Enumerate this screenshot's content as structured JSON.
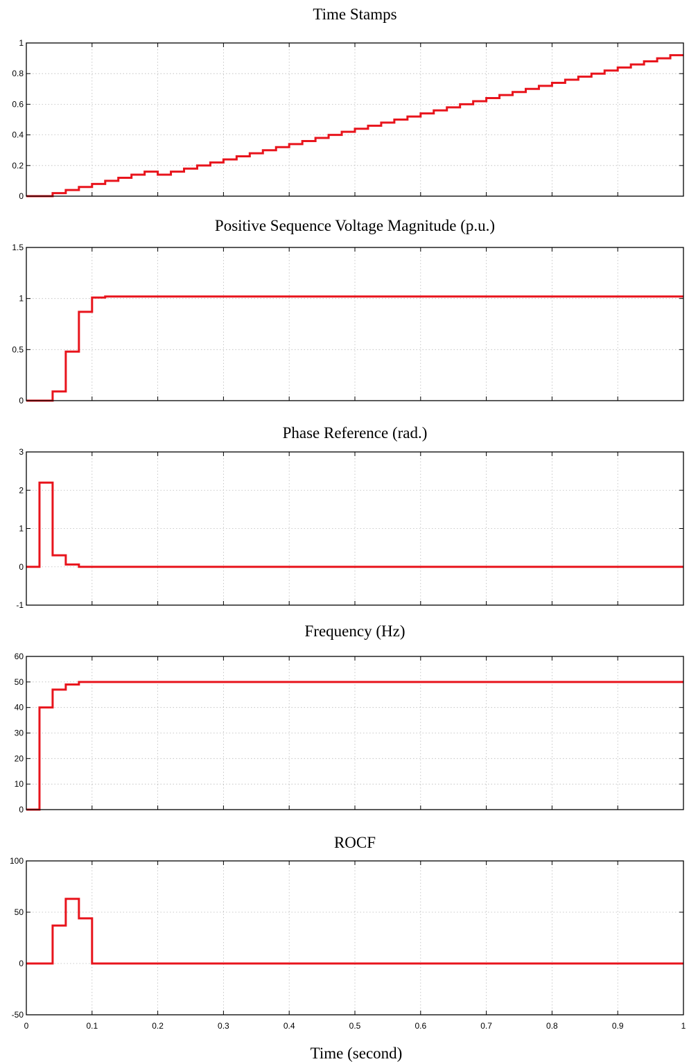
{
  "figure": {
    "xlabel": "Time (second)",
    "trace_color": "#e8141c"
  },
  "chart_data": [
    {
      "type": "line",
      "step": true,
      "title": "Time Stamps",
      "xlim": [
        0,
        1
      ],
      "ylim": [
        0,
        1
      ],
      "yticks": [
        0,
        0.2,
        0.4,
        0.6,
        0.8,
        1
      ],
      "ytick_labels": [
        "0",
        "0.2",
        "0.4",
        "0.6",
        "0.8",
        "1"
      ],
      "xtick_labels_shown": false,
      "grid": true,
      "x": [
        0,
        0.04,
        0.06,
        0.08,
        0.1,
        0.12,
        0.14,
        0.16,
        0.18,
        0.2,
        0.22,
        0.24,
        0.26,
        0.28,
        0.3,
        0.32,
        0.34,
        0.36,
        0.38,
        0.4,
        0.42,
        0.44,
        0.46,
        0.48,
        0.5,
        0.52,
        0.54,
        0.56,
        0.58,
        0.6,
        0.62,
        0.64,
        0.66,
        0.68,
        0.7,
        0.72,
        0.74,
        0.76,
        0.78,
        0.8,
        0.82,
        0.84,
        0.86,
        0.88,
        0.9,
        0.92,
        0.94,
        0.96,
        0.98,
        1.0
      ],
      "y": [
        0,
        0.02,
        0.04,
        0.06,
        0.08,
        0.1,
        0.12,
        0.14,
        0.16,
        0.14,
        0.16,
        0.18,
        0.2,
        0.22,
        0.24,
        0.26,
        0.28,
        0.3,
        0.32,
        0.34,
        0.36,
        0.38,
        0.4,
        0.42,
        0.44,
        0.46,
        0.48,
        0.5,
        0.52,
        0.54,
        0.56,
        0.58,
        0.6,
        0.62,
        0.64,
        0.66,
        0.68,
        0.7,
        0.72,
        0.74,
        0.76,
        0.78,
        0.8,
        0.82,
        0.84,
        0.86,
        0.88,
        0.9,
        0.92,
        0.92
      ]
    },
    {
      "type": "line",
      "step": true,
      "title": "Positive Sequence Voltage Magnitude (p.u.)",
      "xlim": [
        0,
        1
      ],
      "ylim": [
        0,
        1.5
      ],
      "yticks": [
        0,
        0.5,
        1,
        1.5
      ],
      "ytick_labels": [
        "0",
        "0.5",
        "1",
        "1.5"
      ],
      "xtick_labels_shown": false,
      "grid": true,
      "x": [
        0,
        0.04,
        0.06,
        0.08,
        0.1,
        0.12,
        1.0
      ],
      "y": [
        0,
        0.09,
        0.48,
        0.87,
        1.01,
        1.02,
        1.02
      ]
    },
    {
      "type": "line",
      "step": true,
      "title": "Phase Reference (rad.)",
      "xlim": [
        0,
        1
      ],
      "ylim": [
        -1,
        3
      ],
      "yticks": [
        -1,
        0,
        1,
        2,
        3
      ],
      "ytick_labels": [
        "-1",
        "0",
        "1",
        "2",
        "3"
      ],
      "xtick_labels_shown": false,
      "grid": true,
      "x": [
        0,
        0.02,
        0.04,
        0.06,
        0.08,
        1.0
      ],
      "y": [
        0,
        2.2,
        0.3,
        0.06,
        0,
        0
      ]
    },
    {
      "type": "line",
      "step": true,
      "title": "Frequency (Hz)",
      "xlim": [
        0,
        1
      ],
      "ylim": [
        0,
        60
      ],
      "yticks": [
        0,
        10,
        20,
        30,
        40,
        50,
        60
      ],
      "ytick_labels": [
        "0",
        "10",
        "20",
        "30",
        "40",
        "50",
        "60"
      ],
      "xtick_labels_shown": false,
      "grid": true,
      "x": [
        0,
        0.02,
        0.04,
        0.06,
        0.08,
        1.0
      ],
      "y": [
        0,
        40,
        47,
        49,
        50,
        50
      ]
    },
    {
      "type": "line",
      "step": true,
      "title": "ROCF",
      "xlim": [
        0,
        1
      ],
      "ylim": [
        -50,
        100
      ],
      "yticks": [
        -50,
        0,
        50,
        100
      ],
      "ytick_labels": [
        "-50",
        "0",
        "50",
        "100"
      ],
      "xticks": [
        0,
        0.1,
        0.2,
        0.3,
        0.4,
        0.5,
        0.6,
        0.7,
        0.8,
        0.9,
        1
      ],
      "xtick_labels": [
        "0",
        "0.1",
        "0.2",
        "0.3",
        "0.4",
        "0.5",
        "0.6",
        "0.7",
        "0.8",
        "0.9",
        "1"
      ],
      "xtick_labels_shown": true,
      "grid": true,
      "x": [
        0,
        0.04,
        0.06,
        0.08,
        0.1,
        1.0
      ],
      "y": [
        0,
        37,
        63,
        44,
        0,
        0
      ]
    }
  ]
}
